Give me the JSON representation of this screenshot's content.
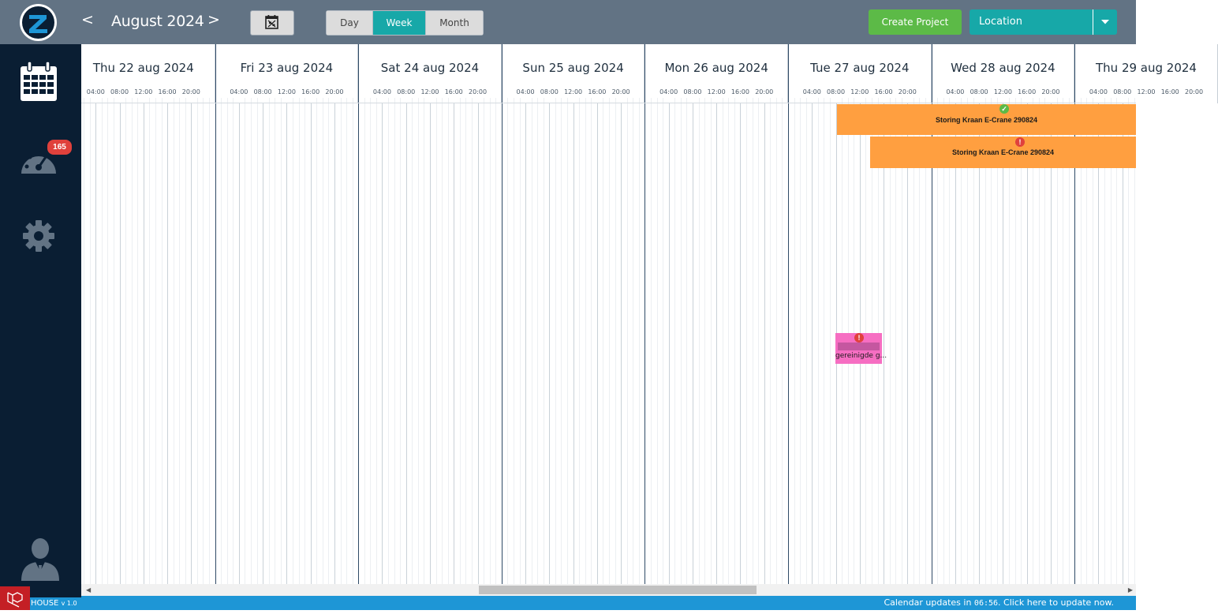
{
  "header": {
    "prev_label": "<",
    "month_title": "August 2024",
    "next_label": ">",
    "calendar_icon": "calendar-grid-icon",
    "views": [
      "Day",
      "Week",
      "Month"
    ],
    "active_view": "Week",
    "create_label": "Create Project",
    "location_label": "Location",
    "colors": {
      "topbar": "#627384",
      "active": "#17a8a8",
      "create": "#5cba47"
    }
  },
  "sidebar": {
    "items": [
      {
        "icon": "calendar-icon"
      },
      {
        "icon": "dashboard-gauge-icon",
        "badge": "165"
      },
      {
        "icon": "gear-icon"
      },
      {
        "icon": "user-icon"
      }
    ],
    "version_brand": "HOUSE",
    "version_number": "v 1.0"
  },
  "calendar": {
    "days": [
      "Thu 22 aug 2024",
      "Fri 23 aug 2024",
      "Sat 24 aug 2024",
      "Sun 25 aug 2024",
      "Mon 26 aug 2024",
      "Tue 27 aug 2024",
      "Wed 28 aug 2024",
      "Thu 29 aug 2024"
    ],
    "hour_labels": [
      "04:00",
      "08:00",
      "12:00",
      "16:00",
      "20:00"
    ],
    "events": [
      {
        "title": "Storing Kraan E-Crane 290824",
        "status": "ok",
        "status_color": "#5cba47",
        "color": "#ff9f40"
      },
      {
        "title": "Storing Kraan E-Crane 290824",
        "status": "warning",
        "status_color": "#e0413c",
        "color": "#ff9f40"
      }
    ],
    "small_event": {
      "text": "gereinigde g...",
      "status": "warning",
      "color": "#f66ec2"
    }
  },
  "footer": {
    "update_prefix": "Calendar updates in",
    "update_time": "06:56",
    "update_suffix": ". Click here to update now."
  }
}
